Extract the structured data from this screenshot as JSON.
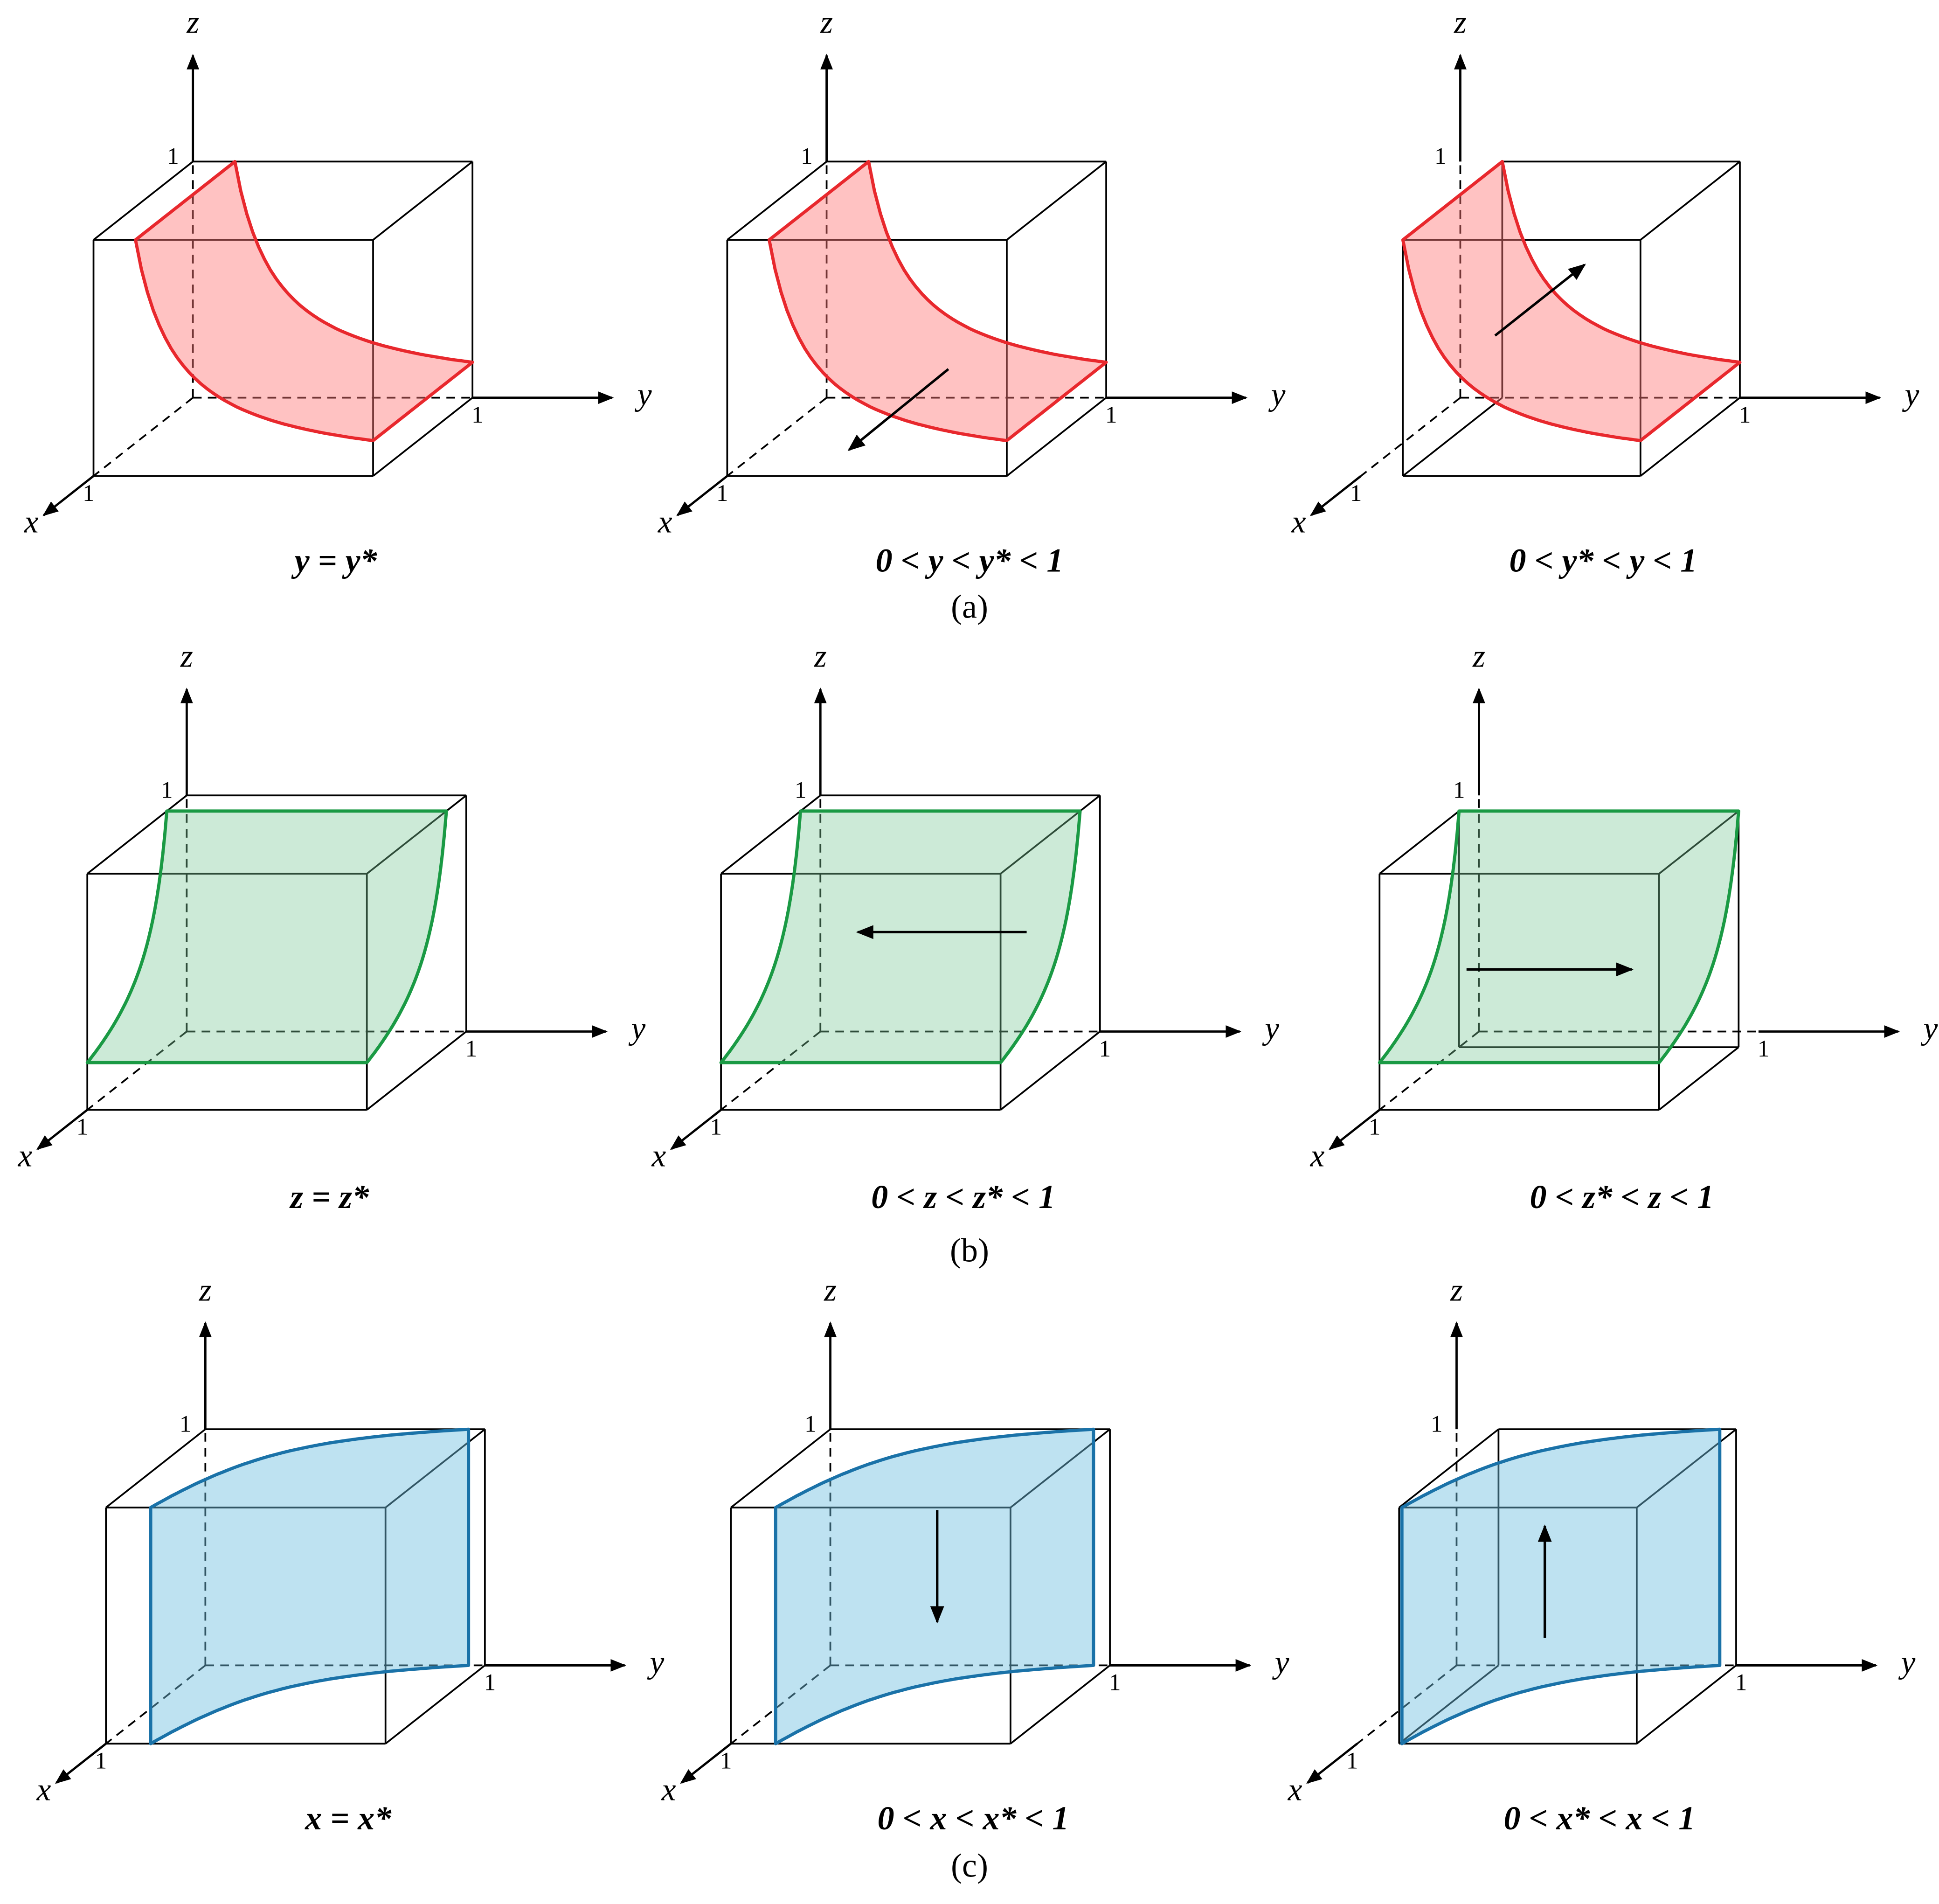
{
  "axes": {
    "x": "x",
    "y": "y",
    "z": "z",
    "one": "1"
  },
  "rows": [
    {
      "label": "(a)",
      "panels": [
        {
          "caption": "y = y*"
        },
        {
          "caption": "0 < y < y* < 1"
        },
        {
          "caption": "0 < y* < y < 1"
        }
      ]
    },
    {
      "label": "(b)",
      "panels": [
        {
          "caption": "z = z*"
        },
        {
          "caption": "0 < z < z* < 1"
        },
        {
          "caption": "0 < z* < z < 1"
        }
      ]
    },
    {
      "label": "(c)",
      "panels": [
        {
          "caption": "x = x*"
        },
        {
          "caption": "0 < x < x* < 1"
        },
        {
          "caption": "0 < x* < x < 1"
        }
      ]
    }
  ]
}
